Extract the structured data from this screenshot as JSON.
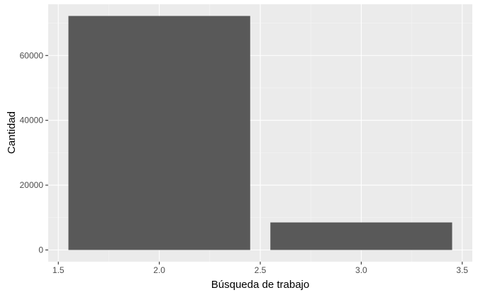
{
  "chart_data": {
    "type": "bar",
    "xlabel": "Búsqueda de trabajo",
    "ylabel": "Cantidad",
    "x": [
      2,
      3
    ],
    "values": [
      72200,
      8500
    ],
    "bar_width": 0.9,
    "xlim": [
      1.45,
      3.55
    ],
    "ylim": [
      -3610,
      75810
    ],
    "x_ticks": [
      1.5,
      2.0,
      2.5,
      3.0,
      3.5
    ],
    "x_tick_labels": [
      "1.5",
      "2.0",
      "2.5",
      "3.0",
      "3.5"
    ],
    "y_ticks": [
      0,
      20000,
      40000,
      60000
    ],
    "y_tick_labels": [
      "0",
      "20000",
      "40000",
      "60000"
    ],
    "grid": true,
    "colors": {
      "bar": "#595959",
      "panel": "#ebebeb",
      "grid": "#ffffff"
    }
  }
}
